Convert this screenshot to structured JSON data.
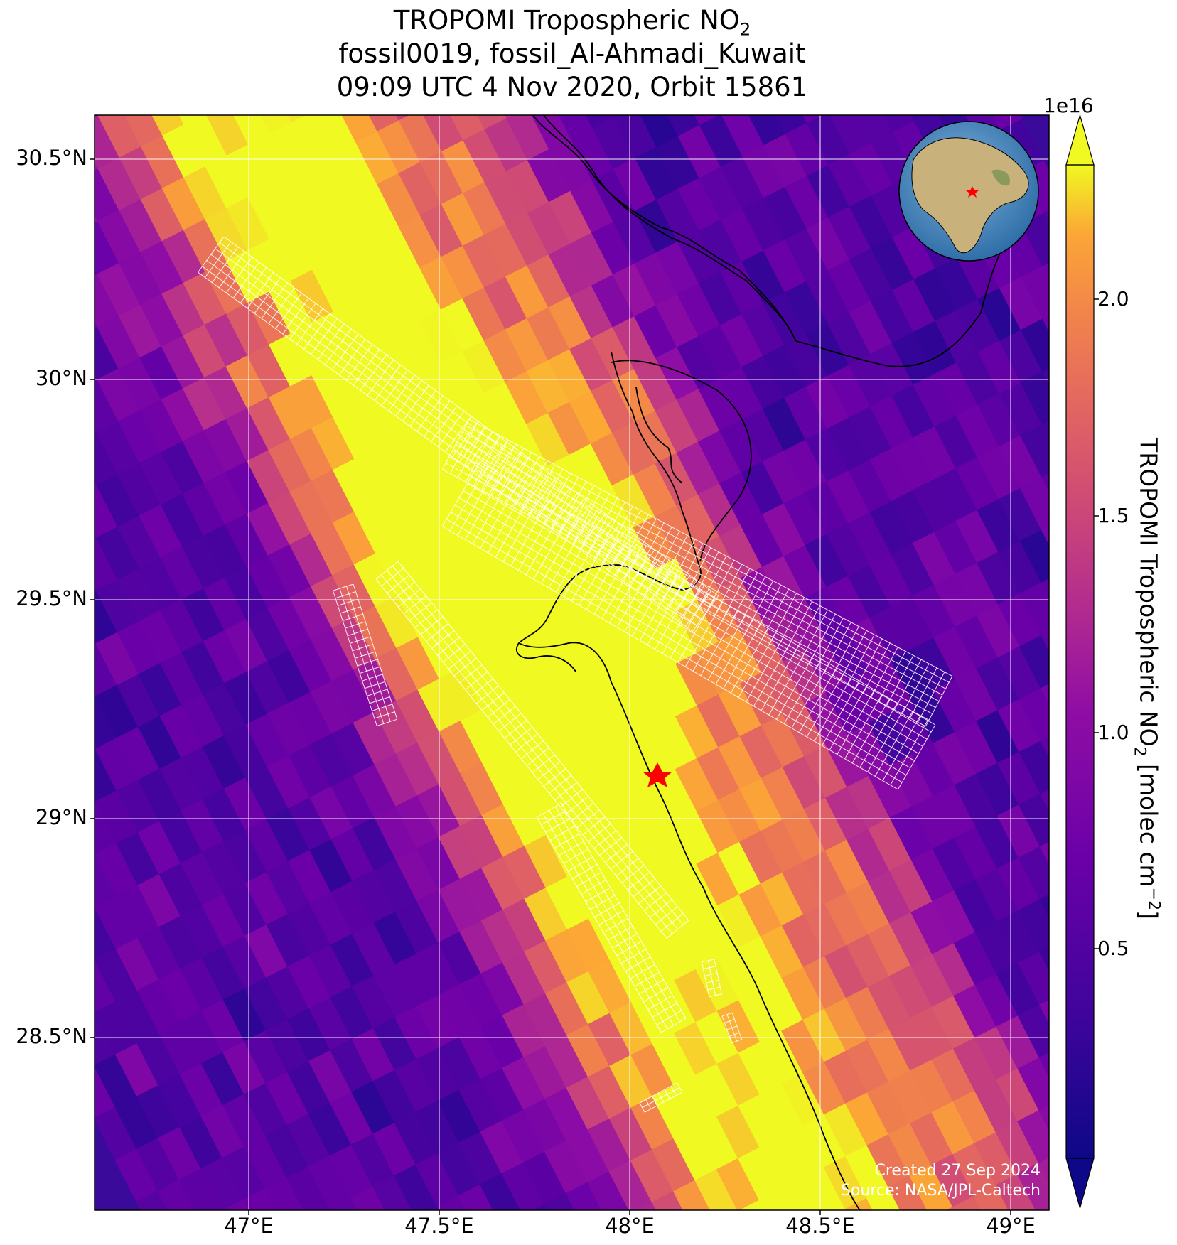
{
  "title": {
    "line1_main": "TROPOMI Tropospheric NO",
    "line1_sub": "2",
    "line2": "fossil0019, fossil_Al-Ahmadi_Kuwait",
    "line3": "09:09 UTC 4 Nov 2020, Orbit 15861"
  },
  "axes": {
    "lat_ticks": [
      "30.5°N",
      "30°N",
      "29.5°N",
      "29°N",
      "28.5°N"
    ],
    "lon_ticks": [
      "47°E",
      "47.5°E",
      "48°E",
      "48.5°E",
      "49°E"
    ]
  },
  "colorbar": {
    "exponent": "1e16",
    "ticks": [
      "2.0",
      "1.5",
      "1.0",
      "0.5"
    ],
    "label_main": "TROPOMI Tropospheric NO",
    "label_sub": "2",
    "label_units": " [molec cm",
    "label_exp": "−2",
    "label_end": "]"
  },
  "credits": {
    "created": "Created 27 Sep 2024",
    "source": "Source: NASA/JPL-Caltech"
  },
  "map_data": {
    "lon_range": [
      46.6,
      49.1
    ],
    "lat_range": [
      28.15,
      30.6
    ],
    "lon_grid": [
      47.0,
      47.5,
      48.0,
      48.5,
      49.0
    ],
    "lat_grid": [
      28.5,
      29.0,
      29.5,
      30.0,
      30.5
    ],
    "colormap": "plasma",
    "value_range_1e16": [
      0.1,
      2.3
    ],
    "site": {
      "name": "fossil_Al-Ahmadi_Kuwait",
      "lon": 48.07,
      "lat": 29.09,
      "marker_color": "#ff0000"
    },
    "background_color": "#3a0a9a",
    "target_grid_color": "#ffffff"
  }
}
